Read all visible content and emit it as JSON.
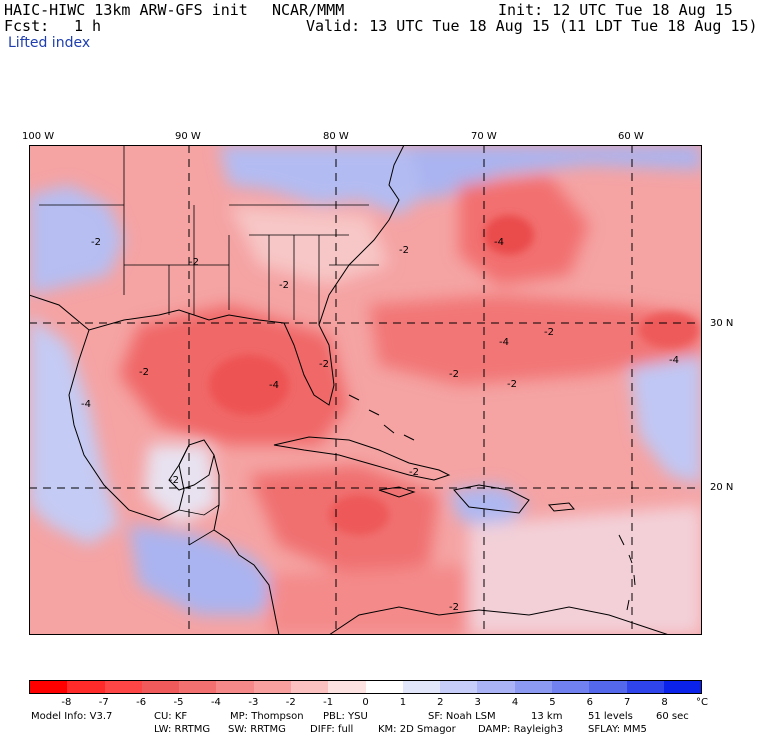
{
  "header": {
    "model_title": "HAIC-HIWC 13km ARW-GFS init",
    "org": "NCAR/MMM",
    "init": "Init: 12 UTC Tue 18 Aug 15",
    "fcst_label": "Fcst:",
    "fcst_value": "1 h",
    "valid": "Valid: 13 UTC Tue 18 Aug 15 (11 LDT Tue 18 Aug 15)",
    "field_name": "Lifted index"
  },
  "map": {
    "longitude_labels": [
      "100 W",
      "90 W",
      "80 W",
      "70 W",
      "60 W"
    ],
    "latitude_labels": [
      "30 N",
      "20 N"
    ],
    "contour_labels": [
      "-2",
      "-2",
      "-2",
      "-2",
      "-4",
      "-2",
      "-4",
      "-2",
      "-2",
      "-4",
      "-2",
      "-2",
      "-2",
      "-4",
      "-4",
      "-2",
      "-2"
    ],
    "colors": {
      "ocean_base": "#f08080",
      "strong_unstable": "#f05a5a",
      "stable_blue": "#aab4f0",
      "neutral": "#fde6e6"
    }
  },
  "colorbar": {
    "unit": "°C",
    "tick_labels": [
      "-8",
      "-7",
      "-6",
      "-5",
      "-4",
      "-3",
      "-2",
      "-1",
      "0",
      "1",
      "2",
      "3",
      "4",
      "5",
      "6",
      "7",
      "8"
    ],
    "colors": [
      "#ff0000",
      "#ff2a2a",
      "#ff4646",
      "#f05a5a",
      "#f37070",
      "#f58888",
      "#f8a0a0",
      "#fbc0c0",
      "#fde2e2",
      "#ffffff",
      "#e2e6fb",
      "#c6cdf8",
      "#a9b3f5",
      "#8d9af2",
      "#7181ef",
      "#5468ec",
      "#2f45eb",
      "#0a22ea"
    ]
  },
  "footer": {
    "line1": [
      "Model Info: V3.7",
      "CU: KF",
      "MP: Thompson",
      "PBL: YSU",
      "SF: Noah LSM",
      "13 km",
      "51 levels",
      "60 sec"
    ],
    "line2": [
      "LW: RRTMG",
      "SW: RRTMG",
      "DIFF: full",
      "KM: 2D Smagor",
      "DAMP: Rayleigh3",
      "SFLAY: MM5"
    ]
  }
}
